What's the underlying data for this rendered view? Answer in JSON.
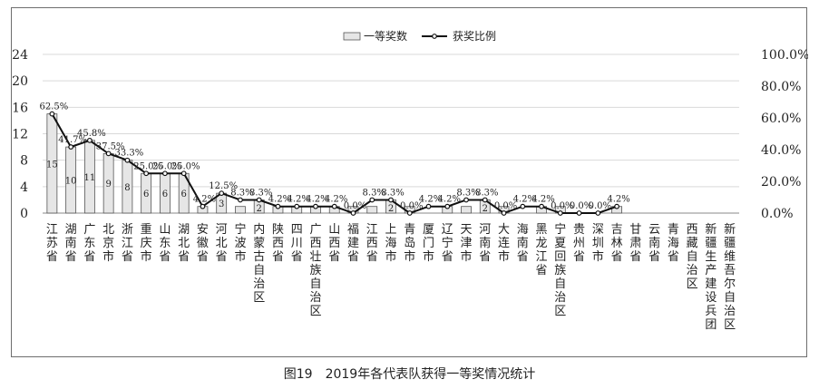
{
  "figure": {
    "caption": "图19　2019年各代表队获得一等奖情况统计"
  },
  "chart_data": {
    "type": "bar",
    "categories": [
      "江苏省",
      "湖南省",
      "广东省",
      "北京市",
      "浙江省",
      "重庆市",
      "山东省",
      "湖北省",
      "安徽省",
      "河北省",
      "宁波市",
      "内蒙古自治区",
      "陕西省",
      "四川省",
      "广西壮族自治区",
      "山西省",
      "福建省",
      "江西省",
      "上海市",
      "青岛市",
      "厦门市",
      "辽宁省",
      "天津市",
      "河南省",
      "大连市",
      "海南省",
      "黑龙江省",
      "宁夏回族自治区",
      "贵州省",
      "深圳市",
      "吉林省",
      "甘肃省",
      "云南省",
      "青海省",
      "西藏自治区",
      "新疆生产建设兵团",
      "新疆维吾尔自治区"
    ],
    "series": [
      {
        "name": "一等奖数",
        "type": "bar",
        "axis": "left",
        "values": [
          15,
          10,
          11,
          9,
          8,
          6,
          6,
          6,
          1,
          3,
          1,
          2,
          1,
          1,
          1,
          1,
          1,
          1,
          2,
          1,
          0,
          1,
          1,
          2,
          1,
          0,
          1,
          1,
          0,
          0,
          1,
          0,
          0,
          0,
          0,
          0,
          0
        ],
        "labels": [
          "15",
          "10",
          "11",
          "9",
          "8",
          "6",
          "6",
          "6",
          "",
          "3",
          "",
          "2",
          "",
          "",
          "",
          "",
          "",
          "",
          "2",
          "",
          "",
          "",
          "",
          "2",
          "",
          "",
          "",
          "",
          "",
          "",
          "",
          "",
          "",
          "",
          "",
          "",
          ""
        ]
      },
      {
        "name": "获奖比例",
        "type": "line",
        "axis": "right",
        "values": [
          62.5,
          41.7,
          45.8,
          37.5,
          33.3,
          25.0,
          25.0,
          25.0,
          4.2,
          12.5,
          8.3,
          8.3,
          4.2,
          4.2,
          4.2,
          4.2,
          0.0,
          8.3,
          8.3,
          0.0,
          4.2,
          4.2,
          8.3,
          8.3,
          0.0,
          4.2,
          4.2,
          0.0,
          0.0,
          0.0,
          4.2,
          null,
          null,
          null,
          null,
          null,
          null
        ],
        "labels": [
          "62.5%",
          "41.7%",
          "45.8%",
          "37.5%",
          "33.3%",
          "25.0%",
          "25.0%",
          "25.0%",
          "4.2%",
          "12.5%",
          "8.3%",
          "8.3%",
          "4.2%",
          "4.2%",
          "4.2%",
          "4.2%",
          "0.0%",
          "8.3%",
          "8.3%",
          "0.0%",
          "4.2%",
          "4.2%",
          "8.3%",
          "8.3%",
          "0.0%",
          "4.2%",
          "4.2%",
          "0.0%",
          "0.0%",
          "0.0%",
          "4.2%",
          "",
          "",
          "",
          "",
          "",
          ""
        ]
      }
    ],
    "y_left": {
      "ticks": [
        "0",
        "4",
        "8",
        "12",
        "16",
        "20",
        "24"
      ],
      "lim": [
        0,
        24
      ]
    },
    "y_right": {
      "ticks": [
        "0.0%",
        "20.0%",
        "40.0%",
        "60.0%",
        "80.0%",
        "100.0%"
      ],
      "lim": [
        0,
        100
      ]
    },
    "legend": {
      "position": "top-center",
      "entries": [
        "一等奖数",
        "获奖比例"
      ]
    },
    "colors": {
      "bar_fill": "#e6e6e6",
      "bar_stroke": "#555555",
      "line": "#111111",
      "frame": "#6e6e6e"
    }
  }
}
